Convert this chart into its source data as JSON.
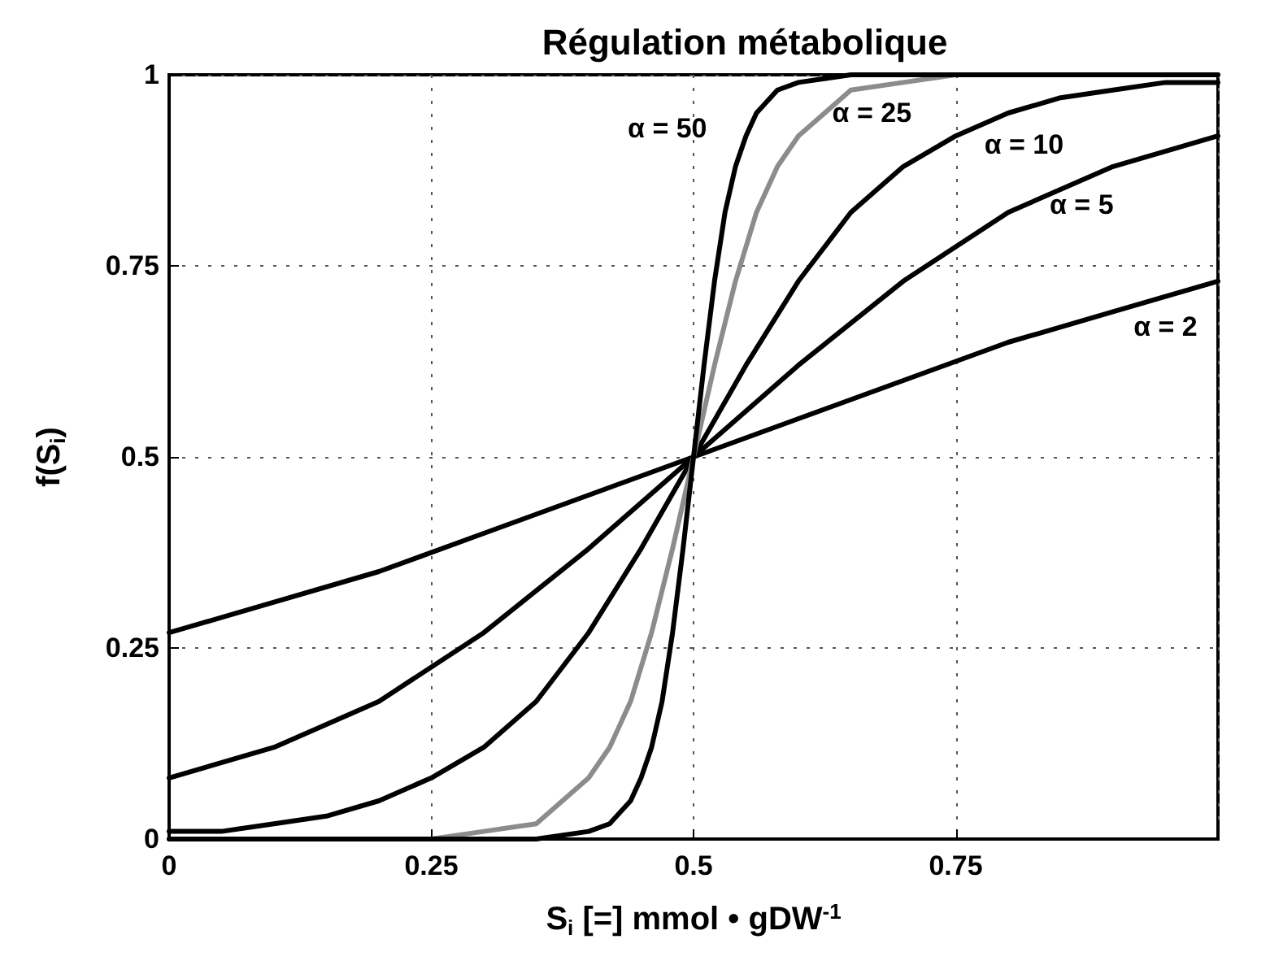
{
  "chart_data": {
    "type": "line",
    "title": "Régulation métabolique",
    "xlabel": "S$_{i}$ [=] mmol • gDW$^{-1}$",
    "ylabel": "f(S$_{i}$)",
    "xlim": [
      0,
      1
    ],
    "ylim": [
      0,
      1
    ],
    "xticks": [
      0,
      0.25,
      0.5,
      0.75,
      {
        "value": 1,
        "label": null
      }
    ],
    "yticks": [
      0,
      0.25,
      0.5,
      0.75,
      1
    ],
    "grid": true,
    "legend": false,
    "marker": "none",
    "line_style": "solid",
    "series": [
      {
        "name": "α = 2",
        "color": "#000000",
        "x": [
          0,
          0.1,
          0.2,
          0.3,
          0.4,
          0.5,
          0.6,
          0.7,
          0.8,
          0.9,
          1
        ],
        "values": [
          0.27,
          0.31,
          0.35,
          0.4,
          0.45,
          0.5,
          0.55,
          0.6,
          0.65,
          0.69,
          0.73
        ]
      },
      {
        "name": "α = 5",
        "color": "#000000",
        "x": [
          0,
          0.1,
          0.2,
          0.3,
          0.4,
          0.5,
          0.6,
          0.7,
          0.8,
          0.9,
          1
        ],
        "values": [
          0.08,
          0.12,
          0.18,
          0.27,
          0.38,
          0.5,
          0.62,
          0.73,
          0.82,
          0.88,
          0.92
        ]
      },
      {
        "name": "α = 10",
        "color": "#000000",
        "x": [
          0,
          0.05,
          0.1,
          0.15,
          0.2,
          0.25,
          0.3,
          0.35,
          0.4,
          0.45,
          0.5,
          0.55,
          0.6,
          0.65,
          0.7,
          0.75,
          0.8,
          0.85,
          0.9,
          0.95,
          1
        ],
        "values": [
          0.01,
          0.01,
          0.02,
          0.03,
          0.05,
          0.08,
          0.12,
          0.18,
          0.27,
          0.38,
          0.5,
          0.62,
          0.73,
          0.82,
          0.88,
          0.92,
          0.95,
          0.97,
          0.98,
          0.99,
          0.99
        ]
      },
      {
        "name": "α = 25",
        "color": "#8c8c8c",
        "x": [
          0,
          0.2,
          0.25,
          0.3,
          0.35,
          0.4,
          0.42,
          0.44,
          0.46,
          0.48,
          0.5,
          0.52,
          0.54,
          0.56,
          0.58,
          0.6,
          0.65,
          0.7,
          0.75,
          0.8,
          1
        ],
        "values": [
          0,
          0,
          0,
          0.01,
          0.02,
          0.08,
          0.12,
          0.18,
          0.27,
          0.38,
          0.5,
          0.62,
          0.73,
          0.82,
          0.88,
          0.92,
          0.98,
          0.99,
          1,
          1,
          1
        ]
      },
      {
        "name": "α = 50",
        "color": "#000000",
        "x": [
          0,
          0.35,
          0.4,
          0.42,
          0.44,
          0.45,
          0.46,
          0.47,
          0.48,
          0.49,
          0.5,
          0.51,
          0.52,
          0.53,
          0.54,
          0.55,
          0.56,
          0.58,
          0.6,
          0.65,
          1
        ],
        "values": [
          0,
          0,
          0.01,
          0.02,
          0.05,
          0.08,
          0.12,
          0.18,
          0.27,
          0.38,
          0.5,
          0.62,
          0.73,
          0.82,
          0.88,
          0.92,
          0.95,
          0.98,
          0.99,
          1,
          1
        ]
      }
    ]
  }
}
